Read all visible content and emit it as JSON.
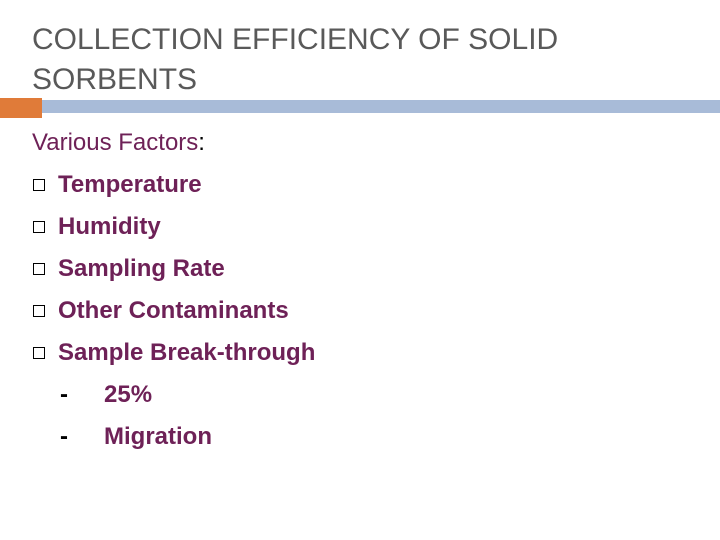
{
  "title": "COLLECTION EFFICIENCY OF SOLID SORBENTS",
  "heading": {
    "text": "Various Factors",
    "suffix": ":"
  },
  "items": [
    "Temperature",
    "Humidity",
    "Sampling Rate",
    "Other Contaminants",
    "Sample Break-through"
  ],
  "subitems": [
    {
      "marker": "-",
      "text": "25%"
    },
    {
      "marker": "-",
      "text": "Migration"
    }
  ]
}
